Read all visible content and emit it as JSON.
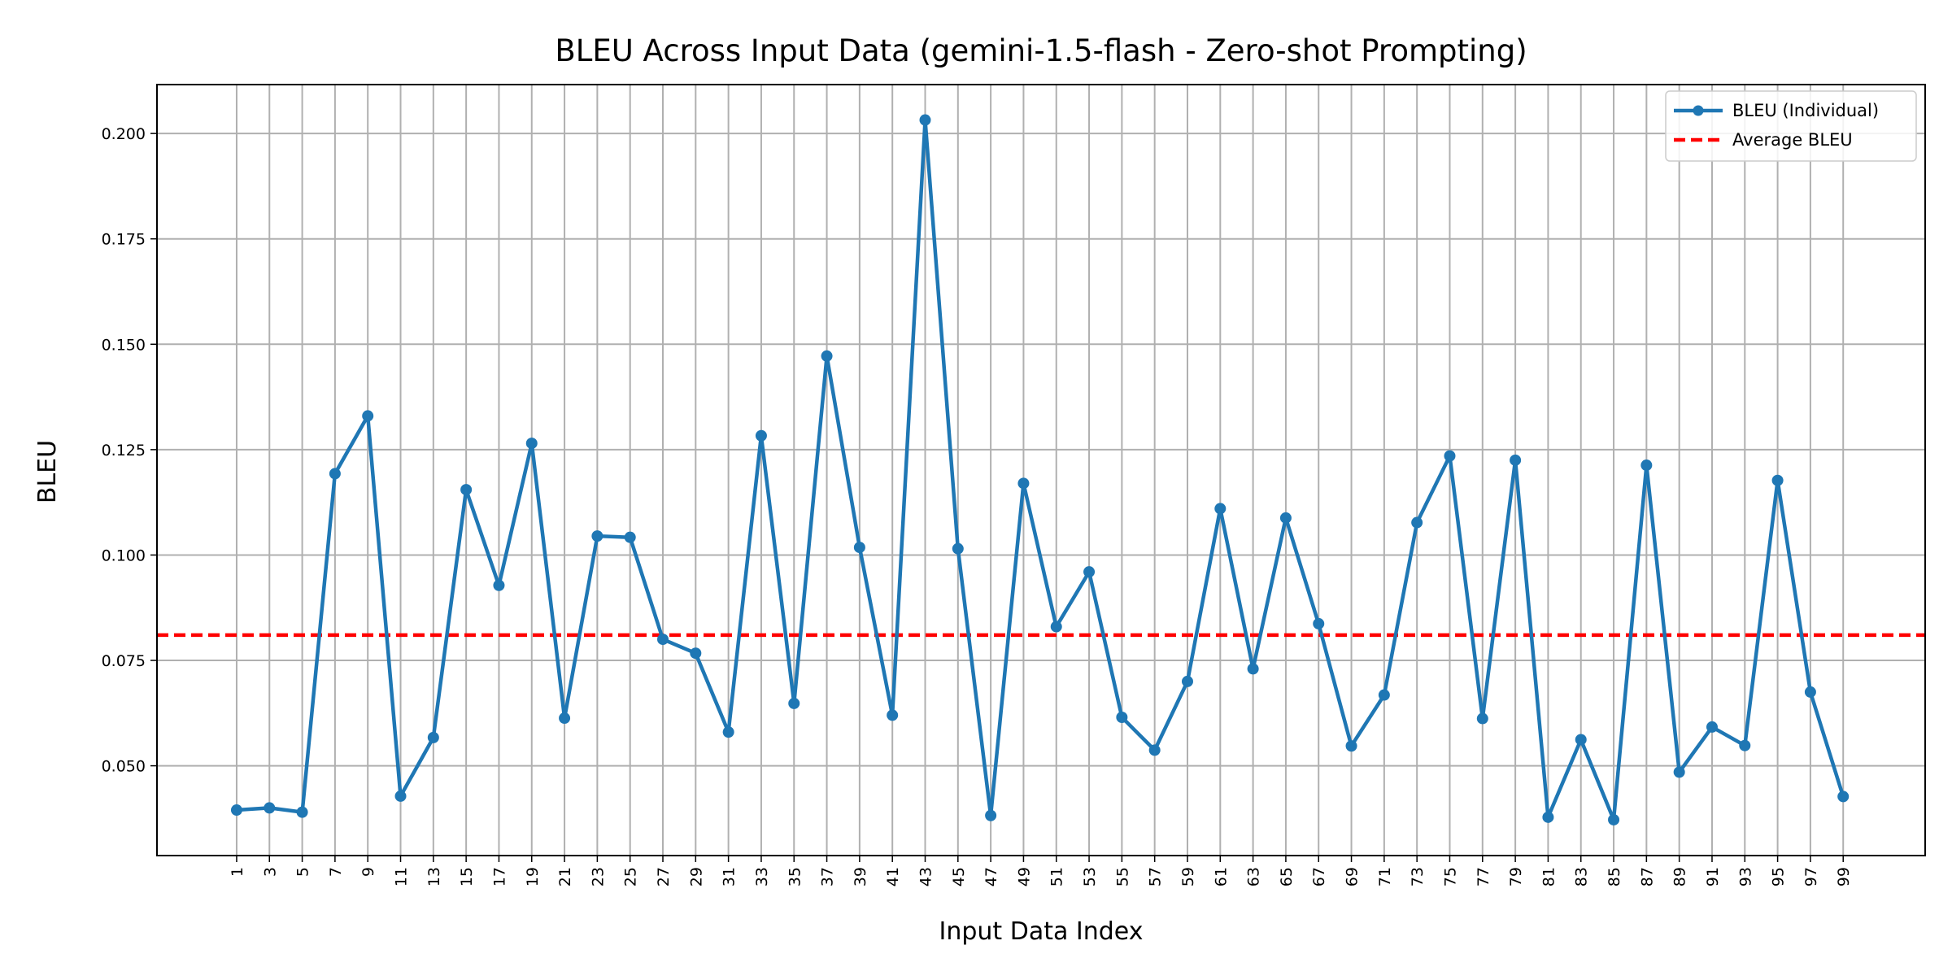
{
  "chart_data": {
    "type": "line",
    "title": "BLEU Across Input Data (gemini-1.5-flash - Zero-shot Prompting)",
    "xlabel": "Input Data Index",
    "ylabel": "BLEU",
    "x": [
      1,
      3,
      5,
      7,
      9,
      11,
      13,
      15,
      17,
      19,
      21,
      23,
      25,
      27,
      29,
      31,
      33,
      35,
      37,
      39,
      41,
      43,
      45,
      47,
      49,
      51,
      53,
      55,
      57,
      59,
      61,
      63,
      65,
      67,
      69,
      71,
      73,
      75,
      77,
      79,
      81,
      83,
      85,
      87,
      89,
      91,
      93,
      95,
      97,
      99
    ],
    "xticks": [
      "1",
      "3",
      "5",
      "7",
      "9",
      "11",
      "13",
      "15",
      "17",
      "19",
      "21",
      "23",
      "25",
      "27",
      "29",
      "31",
      "33",
      "35",
      "37",
      "39",
      "41",
      "43",
      "45",
      "47",
      "49",
      "51",
      "53",
      "55",
      "57",
      "59",
      "61",
      "63",
      "65",
      "67",
      "69",
      "71",
      "73",
      "75",
      "77",
      "79",
      "81",
      "83",
      "85",
      "87",
      "89",
      "91",
      "93",
      "95",
      "97",
      "99"
    ],
    "yticks": [
      "0.050",
      "0.075",
      "0.100",
      "0.125",
      "0.150",
      "0.175",
      "0.200"
    ],
    "ytick_values": [
      0.05,
      0.075,
      0.1,
      0.125,
      0.15,
      0.175,
      0.2
    ],
    "xlim": [
      -3.86,
      104.0
    ],
    "ylim": [
      0.0287,
      0.2116
    ],
    "grid": true,
    "legend_position": "top-right",
    "series": [
      {
        "name": "BLEU (Individual)",
        "color": "#1f77b4",
        "style": "line-with-markers",
        "values": [
          0.0395,
          0.04,
          0.039,
          0.1193,
          0.133,
          0.0428,
          0.0567,
          0.1155,
          0.0928,
          0.1265,
          0.0613,
          0.1045,
          0.1042,
          0.08,
          0.0767,
          0.058,
          0.1283,
          0.0648,
          0.1472,
          0.1018,
          0.062,
          0.2032,
          0.1015,
          0.0382,
          0.117,
          0.083,
          0.096,
          0.0615,
          0.0537,
          0.07,
          0.111,
          0.073,
          0.1088,
          0.0837,
          0.0547,
          0.0668,
          0.1077,
          0.1235,
          0.0612,
          0.1225,
          0.0378,
          0.0562,
          0.0372,
          0.1213,
          0.0485,
          0.0592,
          0.0548,
          0.1177,
          0.0675,
          0.0427
        ]
      },
      {
        "name": "Average BLEU",
        "color": "#ff0000",
        "style": "dashed-horizontal",
        "value": 0.081
      }
    ]
  }
}
